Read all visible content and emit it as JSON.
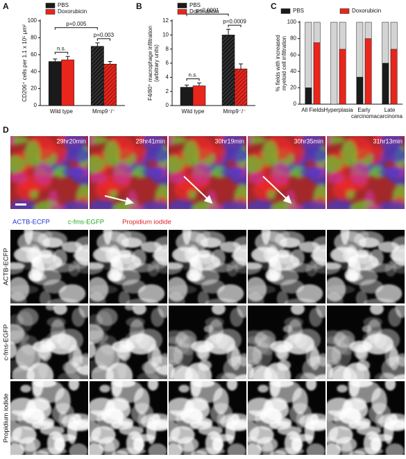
{
  "panel_labels": [
    "A",
    "B",
    "C",
    "D"
  ],
  "chart_data": [
    {
      "type": "bar",
      "ylabel": "CD206⁺ cells per 1.1 x 10⁵ μm²",
      "categories": [
        "Wild type",
        "Mmp9⁻/⁻"
      ],
      "series": [
        {
          "name": "PBS",
          "color": "#1a1a1a",
          "values": [
            52,
            70
          ],
          "errors": [
            3,
            4
          ],
          "hatch": [
            false,
            true
          ]
        },
        {
          "name": "Doxorubicin",
          "color": "#e8261c",
          "values": [
            54,
            49
          ],
          "errors": [
            4,
            3
          ],
          "hatch": [
            false,
            true
          ]
        }
      ],
      "ylim": [
        0,
        100
      ],
      "yticks": [
        0,
        20,
        40,
        60,
        80,
        100
      ],
      "annotations": [
        "n.s.",
        "p=0.003",
        "p=0.005"
      ]
    },
    {
      "type": "bar",
      "ylabel": [
        "F4/80⁺ macrophage infiltration",
        "(arbitrary units)"
      ],
      "categories": [
        "Wild type",
        "Mmp9⁻/⁻"
      ],
      "series": [
        {
          "name": "PBS",
          "color": "#1a1a1a",
          "values": [
            2.6,
            10
          ],
          "errors": [
            0.3,
            0.8
          ],
          "hatch": [
            false,
            true
          ]
        },
        {
          "name": "Doxorubicin",
          "color": "#e8261c",
          "values": [
            2.8,
            5.2
          ],
          "errors": [
            0.4,
            0.7
          ],
          "hatch": [
            false,
            true
          ]
        }
      ],
      "ylim": [
        0,
        12
      ],
      "yticks": [
        0,
        2,
        4,
        6,
        8,
        10,
        12
      ],
      "annotations": [
        "n.s.",
        "p=0.0009",
        "p<0.0001"
      ]
    },
    {
      "type": "percent_bar",
      "ylabel": [
        "% fields with increased",
        "myeloid cell infiltration"
      ],
      "categories": [
        "All Fields",
        "Hyperplasia",
        "Early carcinoma",
        "Late carcinoma"
      ],
      "series": [
        {
          "name": "PBS",
          "color": "#1a1a1a",
          "values": [
            20,
            0,
            33,
            50
          ]
        },
        {
          "name": "Doxorubicin",
          "color": "#e8261c",
          "values": [
            75,
            67,
            80,
            67
          ]
        }
      ],
      "remainder_color": "#d3d3d3",
      "ylim": [
        0,
        100
      ],
      "yticks": [
        0,
        20,
        40,
        60,
        80,
        100
      ]
    }
  ],
  "panel_d": {
    "timestamps": [
      "29hr20min",
      "29hr41min",
      "30hr19min",
      "30hr35min",
      "31hr13min"
    ],
    "channel_legend": [
      {
        "text": "ACTB-ECFP",
        "color": "#2233cc"
      },
      {
        "text": "c-fms-EGFP",
        "color": "#22aa22"
      },
      {
        "text": "Propidium iodide",
        "color": "#dd2222"
      }
    ],
    "row_labels": [
      "ACTB-ECFP",
      "c-fms-EGFP",
      "Propidium iodide"
    ]
  }
}
